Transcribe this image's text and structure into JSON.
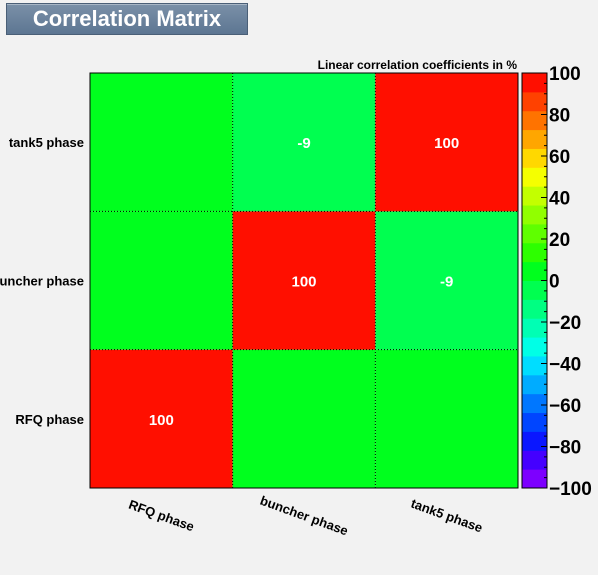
{
  "chart_data": {
    "type": "heatmap",
    "title": "Correlation Matrix",
    "subtitle": "Linear correlation coefficients in %",
    "x_labels": [
      "RFQ phase",
      "buncher phase",
      "tank5 phase"
    ],
    "y_labels": [
      "RFQ phase",
      "buncher phase",
      "tank5 phase"
    ],
    "matrix": [
      [
        100,
        0,
        0
      ],
      [
        0,
        100,
        -9
      ],
      [
        0,
        -9,
        100
      ]
    ],
    "cell_labels": [
      [
        "100",
        "",
        ""
      ],
      [
        "",
        "100",
        "-9"
      ],
      [
        "",
        "-9",
        "100"
      ]
    ],
    "zlim": [
      -100,
      100
    ],
    "colorbar_ticks": [
      "100",
      "80",
      "60",
      "40",
      "20",
      "0",
      "−20",
      "−40",
      "−60",
      "−80",
      "−100"
    ],
    "colorbar_tick_values": [
      100,
      80,
      60,
      40,
      20,
      0,
      -20,
      -40,
      -60,
      -80,
      -100
    ],
    "colorbar_colors": [
      "#7d00ff",
      "#4400ff",
      "#0a17ff",
      "#0045ff",
      "#0077ff",
      "#00acff",
      "#00ddff",
      "#00ffe6",
      "#00ffb4",
      "#00ff82",
      "#00ff50",
      "#00ff1e",
      "#2dff00",
      "#5fff00",
      "#91ff00",
      "#c3ff00",
      "#f5ff00",
      "#ffd800",
      "#ffa600",
      "#ff7300",
      "#ff4100",
      "#ff0f00"
    ],
    "grid": true
  }
}
